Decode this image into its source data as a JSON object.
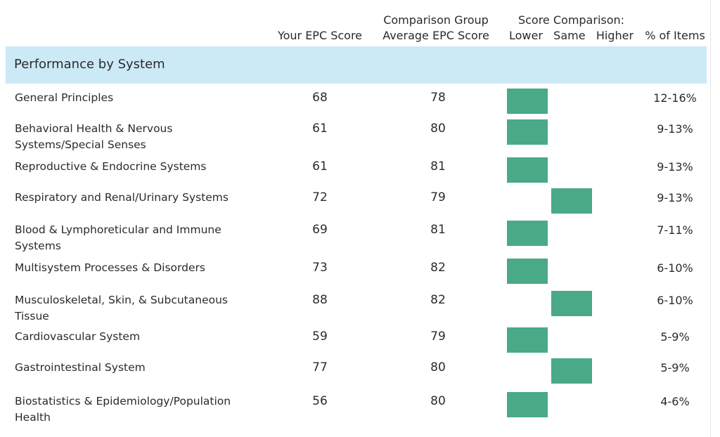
{
  "columns": {
    "your_score": "Your EPC Score",
    "comparison_line1": "Comparison Group",
    "comparison_line2": "Average EPC Score",
    "score_comparison_line1": "Score Comparison:",
    "score_comparison_line2": "Lower   Same   Higher",
    "pct_items": "% of Items"
  },
  "section_title": "Performance by System",
  "colors": {
    "section_bg": "#cce9f6",
    "bar": "#4aa987"
  },
  "chart_data": {
    "type": "table",
    "categories": [
      "Lower",
      "Same",
      "Higher"
    ],
    "rows": [
      {
        "line1": "General Principles",
        "line2": "",
        "your_score": "68",
        "group_avg": "78",
        "comparison": "Lower",
        "pct_items": "12-16%"
      },
      {
        "line1": "Behavioral Health & Nervous",
        "line2": "Systems/Special Senses",
        "your_score": "61",
        "group_avg": "80",
        "comparison": "Lower",
        "pct_items": "9-13%"
      },
      {
        "line1": "Reproductive & Endocrine Systems",
        "line2": "",
        "your_score": "61",
        "group_avg": "81",
        "comparison": "Lower",
        "pct_items": "9-13%"
      },
      {
        "line1": "Respiratory and Renal/Urinary Systems",
        "line2": "",
        "your_score": "72",
        "group_avg": "79",
        "comparison": "Same",
        "pct_items": "9-13%"
      },
      {
        "line1": "Blood & Lymphoreticular and Immune",
        "line2": "Systems",
        "your_score": "69",
        "group_avg": "81",
        "comparison": "Lower",
        "pct_items": "7-11%"
      },
      {
        "line1": "Multisystem Processes & Disorders",
        "line2": "",
        "your_score": "73",
        "group_avg": "82",
        "comparison": "Lower",
        "pct_items": "6-10%"
      },
      {
        "line1": "Musculoskeletal, Skin, & Subcutaneous",
        "line2": "Tissue",
        "your_score": "88",
        "group_avg": "82",
        "comparison": "Same",
        "pct_items": "6-10%"
      },
      {
        "line1": "Cardiovascular System",
        "line2": "",
        "your_score": "59",
        "group_avg": "79",
        "comparison": "Lower",
        "pct_items": "5-9%"
      },
      {
        "line1": "Gastrointestinal System",
        "line2": "",
        "your_score": "77",
        "group_avg": "80",
        "comparison": "Same",
        "pct_items": "5-9%"
      },
      {
        "line1": "Biostatistics & Epidemiology/Population",
        "line2": "Health",
        "your_score": "56",
        "group_avg": "80",
        "comparison": "Lower",
        "pct_items": "4-6%"
      }
    ]
  }
}
